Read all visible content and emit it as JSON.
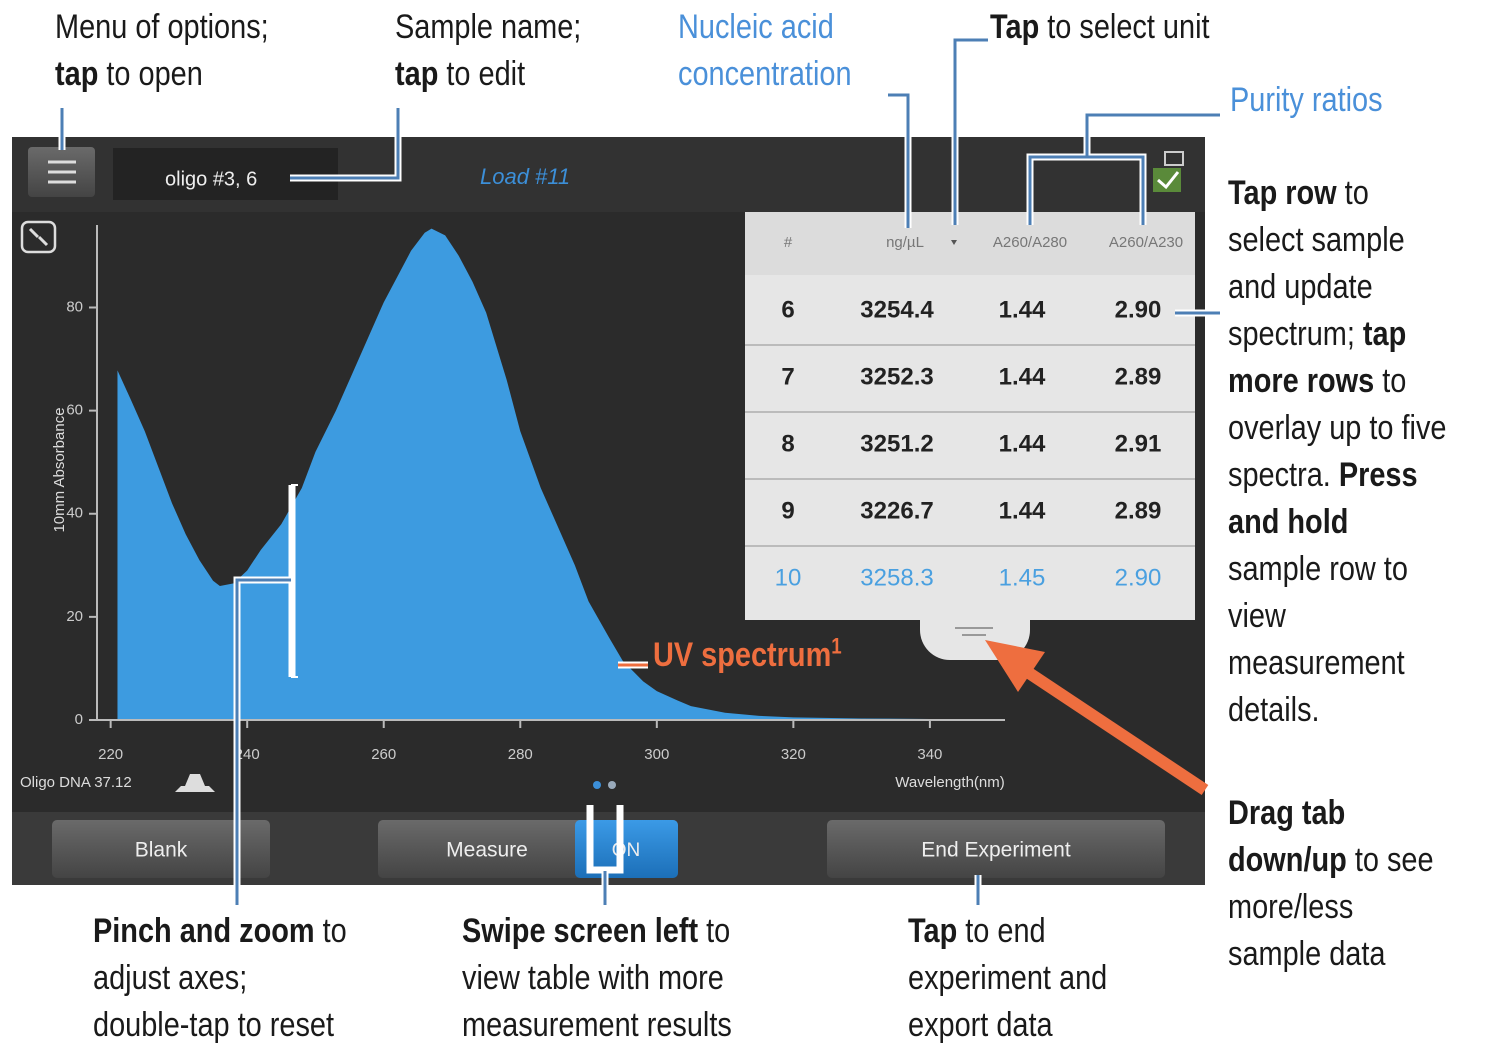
{
  "screen": {
    "sample_name": "oligo #3, 6",
    "load": "Load #11",
    "chart": {
      "type": "area",
      "ylabel": "10mm Absorbance",
      "xlabel": "Wavelength(nm)",
      "color": "#3d9be0",
      "x": [
        221,
        223,
        225,
        227,
        229,
        231,
        233,
        235,
        236,
        238,
        240,
        242,
        245,
        248,
        250,
        253,
        255,
        258,
        260,
        262,
        264,
        266,
        267,
        269,
        271,
        273,
        275,
        278,
        280,
        283,
        285,
        288,
        290,
        293,
        295,
        298,
        300,
        303,
        305,
        310,
        315,
        320,
        330,
        340,
        350
      ],
      "values": [
        67.8,
        62,
        56,
        49,
        42,
        36,
        31,
        27,
        26,
        26.5,
        29,
        33,
        38,
        45,
        52,
        60,
        66,
        75,
        81,
        86,
        91,
        94.5,
        95.3,
        94,
        90,
        85,
        79,
        66,
        56,
        45,
        39,
        30,
        23,
        16,
        11.5,
        7.5,
        5.6,
        3.8,
        2.7,
        1.4,
        0.8,
        0.5,
        0.3,
        0.2,
        0.2
      ],
      "xlim": [
        218,
        351
      ],
      "ylim": [
        0,
        96
      ],
      "xticks": [
        220,
        240,
        260,
        280,
        300,
        320,
        340
      ],
      "yticks": [
        0,
        20,
        40,
        60,
        80
      ]
    },
    "method": "Oligo DNA 37.12",
    "table": {
      "header": [
        "#",
        "ng/µL",
        "A260/A280",
        "A260/A230"
      ],
      "rows": [
        [
          "6",
          "3254.4",
          "1.44",
          "2.90"
        ],
        [
          "7",
          "3252.3",
          "1.44",
          "2.89"
        ],
        [
          "8",
          "3251.2",
          "1.44",
          "2.91"
        ],
        [
          "9",
          "3226.7",
          "1.44",
          "2.89"
        ],
        [
          "10",
          "3258.3",
          "1.45",
          "2.90"
        ]
      ]
    },
    "buttons": [
      "Blank",
      "Measure",
      "ON",
      "End Experiment"
    ]
  },
  "annotations": {
    "menu": {
      "lines": [
        [
          {
            "text": "Menu of options;"
          }
        ],
        [
          {
            "text": "tap",
            "bold": true
          },
          {
            "text": " to open"
          }
        ]
      ]
    },
    "sample": {
      "lines": [
        [
          {
            "text": "Sample name;"
          }
        ],
        [
          {
            "text": "tap",
            "bold": true
          },
          {
            "text": " to edit"
          }
        ]
      ]
    },
    "nucleic": {
      "color": "#4a90d9",
      "lines": [
        [
          {
            "text": "Nucleic acid"
          }
        ],
        [
          {
            "text": "concentration"
          }
        ]
      ]
    },
    "unit": {
      "lines": [
        [
          {
            "text": "Tap",
            "bold": true
          },
          {
            "text": " to select unit"
          }
        ]
      ]
    },
    "purity": {
      "color": "#4a90d9",
      "lines": [
        [
          {
            "text": "Purity ratios"
          }
        ]
      ]
    },
    "row": {
      "lines": [
        [
          {
            "text": "Tap row",
            "bold": true
          },
          {
            "text": " to"
          }
        ],
        [
          {
            "text": "select sample"
          }
        ],
        [
          {
            "text": "and update"
          }
        ],
        [
          {
            "text": "spectrum; "
          },
          {
            "text": "tap",
            "bold": true
          }
        ],
        [
          {
            "text": "more rows",
            "bold": true
          },
          {
            "text": " to"
          }
        ],
        [
          {
            "text": "overlay up to five"
          }
        ],
        [
          {
            "text": "spectra. "
          },
          {
            "text": "Press",
            "bold": true
          }
        ],
        [
          {
            "text": "and hold",
            "bold": true
          }
        ],
        [
          {
            "text": "sample row to"
          }
        ],
        [
          {
            "text": "view"
          }
        ],
        [
          {
            "text": "measurement"
          }
        ],
        [
          {
            "text": "details."
          }
        ]
      ]
    },
    "drag": {
      "lines": [
        [
          {
            "text": "Drag tab",
            "bold": true
          }
        ],
        [
          {
            "text": "down/up",
            "bold": true
          },
          {
            "text": " to see"
          }
        ],
        [
          {
            "text": "more/less"
          }
        ],
        [
          {
            "text": "sample data"
          }
        ]
      ]
    },
    "pinch": {
      "lines": [
        [
          {
            "text": "Pinch and zoom",
            "bold": true
          },
          {
            "text": " to"
          }
        ],
        [
          {
            "text": "adjust axes;"
          }
        ],
        [
          {
            "text": "double-tap to reset"
          }
        ]
      ]
    },
    "swipe": {
      "lines": [
        [
          {
            "text": "Swipe screen left",
            "bold": true
          },
          {
            "text": " to"
          }
        ],
        [
          {
            "text": "view table with more"
          }
        ],
        [
          {
            "text": "measurement results"
          }
        ]
      ]
    },
    "end": {
      "lines": [
        [
          {
            "text": "Tap",
            "bold": true
          },
          {
            "text": " to end"
          }
        ],
        [
          {
            "text": "experiment and"
          }
        ],
        [
          {
            "text": "export data"
          }
        ]
      ]
    },
    "uv": {
      "color": "#ee6e3f",
      "text": "UV spectrum",
      "sup": "1"
    }
  }
}
